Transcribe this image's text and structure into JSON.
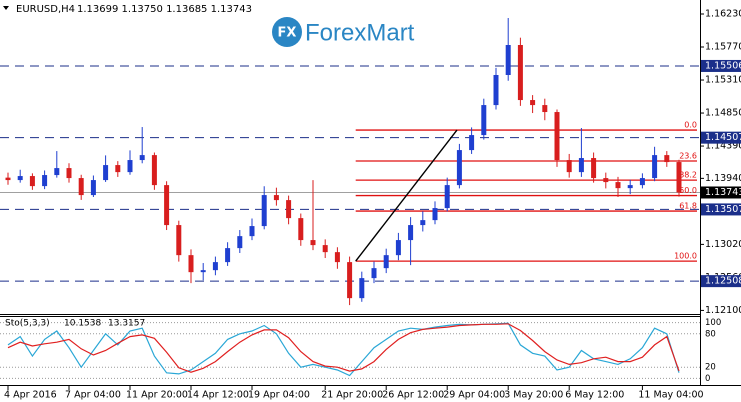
{
  "logo": {
    "icon": "FX",
    "name": "ForexMart"
  },
  "chart_data": [
    {
      "type": "candlestick",
      "title": "EURUSD,H4",
      "subtitle": "1.13699 1.13750 1.13685 1.13743",
      "bull_color": "#1f3fd0",
      "bear_color": "#d81e1e",
      "open": [
        1.1395,
        1.13916,
        1.13972,
        1.13832,
        1.13986,
        1.14083,
        1.13944,
        1.13707,
        1.13916,
        1.14125,
        1.14027,
        1.14195,
        1.14264,
        1.13846,
        1.13289,
        1.1287,
        1.12633,
        1.12661,
        1.12773,
        1.12968,
        1.13135,
        1.13275,
        1.13707,
        1.13637,
        1.13386,
        1.1308,
        1.1301,
        1.12912,
        1.12773,
        1.12271,
        1.1255,
        1.12689,
        1.1287,
        1.1308,
        1.13289,
        1.13358,
        1.13526,
        1.13846,
        1.14334,
        1.14543,
        1.14961,
        1.1538,
        1.15798,
        1.15031,
        1.14961,
        1.14864,
        1.14195,
        1.14027,
        1.14223,
        1.13944,
        1.13888,
        1.13804,
        1.13846,
        1.13944,
        1.14264,
        1.14167
      ],
      "high": [
        1.1402,
        1.1406,
        1.1401,
        1.1405,
        1.1432,
        1.1415,
        1.1399,
        1.1398,
        1.1426,
        1.1418,
        1.1433,
        1.14655,
        1.143,
        1.139,
        1.1335,
        1.1295,
        1.1276,
        1.1285,
        1.1305,
        1.1322,
        1.1338,
        1.1383,
        1.1381,
        1.137,
        1.1345,
        1.13916,
        1.1309,
        1.1298,
        1.1285,
        1.1264,
        1.1278,
        1.1296,
        1.1318,
        1.134,
        1.1348,
        1.1362,
        1.1395,
        1.1442,
        1.1465,
        1.1505,
        1.1548,
        1.16174,
        1.159,
        1.151,
        1.1505,
        1.149,
        1.1428,
        1.14641,
        1.143,
        1.1402,
        1.1396,
        1.1392,
        1.1401,
        1.1438,
        1.1432,
        1.142
      ],
      "low": [
        1.1385,
        1.1388,
        1.1378,
        1.1379,
        1.1395,
        1.1388,
        1.1364,
        1.1368,
        1.1389,
        1.1396,
        1.1399,
        1.1415,
        1.1378,
        1.1322,
        1.1278,
        1.1248,
        1.1252,
        1.1259,
        1.1272,
        1.129,
        1.1308,
        1.1323,
        1.1356,
        1.133,
        1.13,
        1.1294,
        1.1283,
        1.1268,
        1.12174,
        1.1222,
        1.1248,
        1.1262,
        1.128,
        1.12731,
        1.132,
        1.133,
        1.1348,
        1.138,
        1.1428,
        1.1448,
        1.149,
        1.153,
        1.1495,
        1.1485,
        1.1475,
        1.141,
        1.1395,
        1.1396,
        1.1388,
        1.138,
        1.1368,
        1.1372,
        1.138,
        1.139,
        1.141,
        1.13685
      ],
      "close": [
        1.13916,
        1.13972,
        1.13832,
        1.13986,
        1.14083,
        1.13944,
        1.13707,
        1.13916,
        1.14125,
        1.14027,
        1.14195,
        1.14264,
        1.13846,
        1.13289,
        1.1287,
        1.12633,
        1.12661,
        1.12773,
        1.12968,
        1.13135,
        1.13275,
        1.13707,
        1.13637,
        1.13386,
        1.1308,
        1.1301,
        1.12912,
        1.12773,
        1.12271,
        1.1255,
        1.12689,
        1.1287,
        1.1308,
        1.13289,
        1.13358,
        1.13526,
        1.13846,
        1.14334,
        1.14543,
        1.14961,
        1.1538,
        1.15798,
        1.15031,
        1.14961,
        1.14864,
        1.14195,
        1.14027,
        1.14223,
        1.13944,
        1.13888,
        1.13804,
        1.13846,
        1.13944,
        1.14264,
        1.14167,
        1.13743
      ],
      "ylim": [
        1.1205,
        1.16425
      ],
      "yticks": [
        {
          "value": 1.1623,
          "label": "1.16230"
        },
        {
          "value": 1.1577,
          "label": "1.15770"
        },
        {
          "value": 1.1531,
          "label": "1.15310"
        },
        {
          "value": 1.1485,
          "label": "1.14850"
        },
        {
          "value": 1.1439,
          "label": "1.14390"
        },
        {
          "value": 1.1394,
          "label": "1.13940"
        },
        {
          "value": 1.1348,
          "label": "1.13480"
        },
        {
          "value": 1.1302,
          "label": "1.13020"
        },
        {
          "value": 1.1256,
          "label": "1.12560"
        },
        {
          "value": 1.121,
          "label": "1.12100"
        }
      ],
      "xticks": [
        {
          "value": 0,
          "label": "4 Apr 2016"
        },
        {
          "value": 5,
          "label": "7 Apr 04:00"
        },
        {
          "value": 10,
          "label": "11 Apr 20:00"
        },
        {
          "value": 15,
          "label": "14 Apr 12:00"
        },
        {
          "value": 20,
          "label": "19 Apr 04:00"
        },
        {
          "value": 26,
          "label": "21 Apr 20:00"
        },
        {
          "value": 31,
          "label": "26 Apr 12:00"
        },
        {
          "value": 36,
          "label": "29 Apr 04:00"
        },
        {
          "value": 41,
          "label": "3 May 20:00"
        },
        {
          "value": 46,
          "label": "6 May 12:00"
        },
        {
          "value": 52,
          "label": "11 May 04:00"
        }
      ],
      "levels": [
        1.15506,
        1.14507,
        1.13507,
        1.12508
      ],
      "level_color": "#1b2f8a",
      "current_price": 1.13743,
      "fibonacci": {
        "color": "#e01010",
        "start": 28.5,
        "end": 36.8,
        "low": 1.12787,
        "high": 1.14613,
        "levels": [
          {
            "value": 0,
            "label": "0.0"
          },
          23.6,
          38.2,
          {
            "value": 50,
            "label": "50.0"
          },
          61.8,
          {
            "value": 100,
            "label": "100.0"
          }
        ]
      }
    },
    {
      "type": "line",
      "title": "Sto(5,3,3)",
      "ylim": [
        -12,
        112
      ],
      "yticks": [
        100,
        80,
        20,
        0
      ],
      "series": [
        {
          "name": "Main",
          "color": "#2aa7d6",
          "values": [
            60,
            75,
            40,
            70,
            85,
            55,
            20,
            50,
            80,
            60,
            85,
            90,
            40,
            10,
            8,
            15,
            30,
            45,
            70,
            80,
            85,
            95,
            80,
            45,
            20,
            25,
            20,
            15,
            5,
            30,
            55,
            70,
            85,
            90,
            88,
            92,
            95,
            97,
            96,
            97,
            98,
            99,
            60,
            45,
            40,
            15,
            20,
            50,
            35,
            30,
            25,
            35,
            55,
            90,
            80,
            10.1538
          ]
        },
        {
          "name": "Signal",
          "color": "#e02020",
          "values": [
            55,
            65,
            58,
            62,
            65,
            70,
            53,
            42,
            50,
            63,
            75,
            78,
            72,
            47,
            19,
            11,
            18,
            30,
            48,
            65,
            78,
            87,
            87,
            73,
            48,
            30,
            22,
            20,
            13,
            17,
            30,
            52,
            70,
            82,
            88,
            90,
            92,
            95,
            96,
            97,
            97,
            98,
            86,
            68,
            48,
            33,
            25,
            28,
            35,
            38,
            30,
            30,
            38,
            60,
            75,
            13.3157
          ]
        }
      ]
    }
  ]
}
